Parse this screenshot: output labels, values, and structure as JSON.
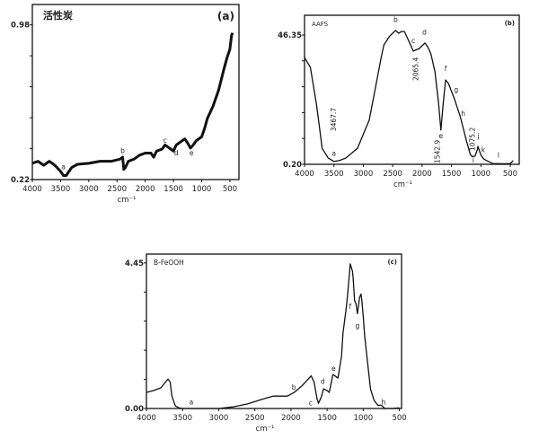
{
  "chart_data": [
    {
      "type": "line",
      "panel_label": "(a)",
      "title": "活性炭",
      "xlabel": "cm⁻¹",
      "ylabel": "",
      "xlim": [
        4000,
        340
      ],
      "ylim": [
        0.22,
        1.08
      ],
      "xticks": [
        4000,
        3500,
        3000,
        2500,
        2000,
        1500,
        1000,
        500
      ],
      "yticks_labeled": [
        "0.22",
        "0.98"
      ],
      "yticks_values": [
        0.22,
        0.98
      ],
      "ytick_count": 6,
      "line_width": 3,
      "grid": false,
      "x": [
        4000,
        3900,
        3800,
        3700,
        3600,
        3500,
        3450,
        3400,
        3350,
        3300,
        3200,
        3000,
        2800,
        2600,
        2450,
        2400,
        2380,
        2350,
        2300,
        2200,
        2100,
        2000,
        1900,
        1850,
        1800,
        1700,
        1650,
        1600,
        1550,
        1500,
        1450,
        1400,
        1350,
        1300,
        1250,
        1200,
        1150,
        1100,
        1000,
        950,
        900,
        800,
        700,
        600,
        550,
        500,
        470,
        450
      ],
      "y": [
        0.3,
        0.31,
        0.29,
        0.31,
        0.29,
        0.26,
        0.24,
        0.24,
        0.26,
        0.28,
        0.295,
        0.3,
        0.31,
        0.31,
        0.32,
        0.33,
        0.27,
        0.28,
        0.31,
        0.32,
        0.34,
        0.35,
        0.35,
        0.33,
        0.36,
        0.37,
        0.39,
        0.38,
        0.37,
        0.36,
        0.39,
        0.4,
        0.41,
        0.42,
        0.4,
        0.375,
        0.39,
        0.41,
        0.43,
        0.47,
        0.52,
        0.58,
        0.66,
        0.77,
        0.82,
        0.86,
        0.93,
        0.94
      ],
      "annotations": [
        {
          "text": "a",
          "x": 3450,
          "y": 0.27
        },
        {
          "text": "b",
          "x": 2400,
          "y": 0.35
        },
        {
          "text": "c",
          "x": 1650,
          "y": 0.4
        },
        {
          "text": "d",
          "x": 1450,
          "y": 0.34
        },
        {
          "text": "e",
          "x": 1180,
          "y": 0.34
        }
      ]
    },
    {
      "type": "line",
      "panel_label": "(b)",
      "title": "AAFS",
      "xlabel": "cm⁻¹",
      "ylabel": "",
      "xlim": [
        4000,
        347
      ],
      "ylim": [
        0.2,
        53.4
      ],
      "xticks": [
        4000,
        3500,
        3000,
        2500,
        2000,
        1500,
        1000,
        500
      ],
      "yticks_labeled": [
        "0.20",
        "46.35"
      ],
      "yticks_values": [
        0.2,
        46.35
      ],
      "ytick_count": 6,
      "line_width": 1.3,
      "grid": false,
      "x": [
        4000,
        3900,
        3800,
        3750,
        3700,
        3600,
        3500,
        3400,
        3300,
        3100,
        2900,
        2800,
        2700,
        2650,
        2550,
        2450,
        2400,
        2350,
        2300,
        2200,
        2150,
        2050,
        1950,
        1900,
        1850,
        1780,
        1720,
        1680,
        1640,
        1600,
        1550,
        1450,
        1350,
        1250,
        1180,
        1150,
        1100,
        1060,
        1050,
        1000,
        950,
        900,
        800,
        600,
        500,
        450
      ],
      "y": [
        38.3,
        34.8,
        22,
        14,
        5.9,
        2.5,
        1.2,
        1.6,
        2.4,
        5.9,
        16,
        26.8,
        38,
        42.8,
        46,
        48,
        47,
        47.6,
        47.6,
        43,
        40.6,
        41.5,
        43.5,
        42,
        39.6,
        33.2,
        22,
        12.4,
        22,
        30.3,
        29,
        23.6,
        17.2,
        9,
        3.7,
        3.0,
        3.1,
        5.5,
        6.6,
        3.5,
        2.1,
        1.5,
        0.5,
        0.4,
        0.5,
        1.5
      ],
      "annotations": [
        {
          "text": "a",
          "x": 3500,
          "y": 3.2
        },
        {
          "text": "b",
          "x": 2450,
          "y": 51
        },
        {
          "text": "c",
          "x": 2150,
          "y": 43.5
        },
        {
          "text": "d",
          "x": 1960,
          "y": 46.5
        },
        {
          "text": "e",
          "x": 1680,
          "y": 9.5
        },
        {
          "text": "f",
          "x": 1600,
          "y": 33.5
        },
        {
          "text": "g",
          "x": 1420,
          "y": 26
        },
        {
          "text": "h",
          "x": 1300,
          "y": 17.5
        },
        {
          "text": "i",
          "x": 1130,
          "y": 0.8
        },
        {
          "text": "j",
          "x": 1040,
          "y": 9.5
        },
        {
          "text": "k",
          "x": 960,
          "y": 4.5
        },
        {
          "text": "l",
          "x": 700,
          "y": 2.6
        }
      ],
      "vertical_annotations": [
        {
          "text": "3467.7",
          "x": 3467.7,
          "y": 12
        },
        {
          "text": "2065.4",
          "x": 2065.4,
          "y": 30
        },
        {
          "text": "1542.9",
          "x": 1700,
          "y": 0.5
        },
        {
          "text": "1075.2",
          "x": 1100,
          "y": 5
        }
      ]
    },
    {
      "type": "line",
      "panel_label": "(c)",
      "title": "B-FeOOH",
      "xlabel": "cm⁻¹",
      "ylabel": "",
      "xlim": [
        4000,
        470
      ],
      "ylim": [
        0.0,
        4.72
      ],
      "xticks": [
        4000,
        3500,
        3000,
        2500,
        2000,
        1500,
        1000,
        500
      ],
      "yticks_labeled": [
        "0.00",
        "4.45"
      ],
      "yticks_values": [
        0.0,
        4.45
      ],
      "ytick_count": 6,
      "line_width": 1.3,
      "grid": false,
      "x": [
        4000,
        3900,
        3800,
        3750,
        3700,
        3670,
        3650,
        3620,
        3600,
        3550,
        3500,
        3000,
        2800,
        2600,
        2400,
        2250,
        2050,
        1950,
        1850,
        1720,
        1680,
        1640,
        1620,
        1580,
        1550,
        1500,
        1470,
        1420,
        1380,
        1350,
        1300,
        1280,
        1240,
        1220,
        1180,
        1150,
        1140,
        1120,
        1100,
        1080,
        1050,
        1030,
        1020,
        1000,
        980,
        940,
        900,
        850,
        800,
        750,
        700,
        600,
        500
      ],
      "y": [
        0.49,
        0.55,
        0.63,
        0.77,
        0.9,
        0.8,
        0.4,
        0.2,
        0.08,
        0.02,
        0.0,
        0.0,
        0.05,
        0.14,
        0.28,
        0.38,
        0.38,
        0.5,
        0.69,
        1.0,
        0.8,
        0.3,
        0.16,
        0.35,
        0.6,
        0.55,
        0.49,
        1.04,
        0.98,
        0.93,
        1.6,
        2.3,
        3.0,
        3.4,
        4.42,
        4.2,
        4.0,
        3.3,
        3.2,
        2.9,
        3.4,
        3.5,
        3.3,
        2.8,
        2.2,
        1.4,
        0.6,
        0.25,
        0.1,
        0.1,
        0.0,
        0.0,
        0.02
      ],
      "annotations": [
        {
          "text": "a",
          "x": 3380,
          "y": 0.12
        },
        {
          "text": "b",
          "x": 1960,
          "y": 0.58
        },
        {
          "text": "c",
          "x": 1730,
          "y": 0.1
        },
        {
          "text": "d",
          "x": 1560,
          "y": 0.75
        },
        {
          "text": "e",
          "x": 1410,
          "y": 1.15
        },
        {
          "text": "f",
          "x": 1180,
          "y": 3.05
        },
        {
          "text": "g",
          "x": 1080,
          "y": 2.45
        },
        {
          "text": "h",
          "x": 720,
          "y": 0.12
        }
      ]
    }
  ]
}
